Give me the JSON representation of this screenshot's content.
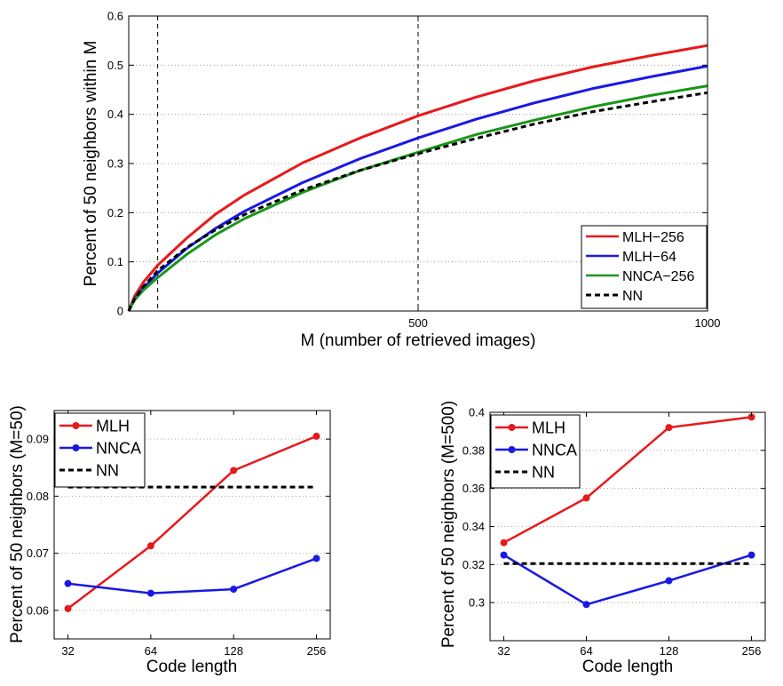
{
  "colors": {
    "red": "#e8191b",
    "blue": "#1919e6",
    "green": "#199619",
    "black": "#000000",
    "grid": "#8c8c8c"
  },
  "chart_data": [
    {
      "type": "line",
      "xlabel": "M (number of retrieved images)",
      "ylabel": "Percent of 50 neighbors within M",
      "xlim": [
        0,
        1000
      ],
      "ylim": [
        0,
        0.6
      ],
      "xticks": [
        500,
        1000
      ],
      "yticks": [
        0,
        0.1,
        0.2,
        0.3,
        0.4,
        0.5,
        0.6
      ],
      "ygrid": true,
      "vlines": [
        50,
        500
      ],
      "legend_position": "bottom-right",
      "series": [
        {
          "name": "MLH−256",
          "color": "#e8191b",
          "style": "solid",
          "x": [
            0,
            10,
            25,
            50,
            100,
            150,
            200,
            300,
            400,
            500,
            600,
            700,
            800,
            900,
            1000
          ],
          "y": [
            0,
            0.03,
            0.058,
            0.093,
            0.148,
            0.197,
            0.236,
            0.301,
            0.352,
            0.397,
            0.435,
            0.468,
            0.496,
            0.519,
            0.54
          ]
        },
        {
          "name": "MLH−64",
          "color": "#1919e6",
          "style": "solid",
          "x": [
            0,
            10,
            25,
            50,
            100,
            150,
            200,
            300,
            400,
            500,
            600,
            700,
            800,
            900,
            1000
          ],
          "y": [
            0,
            0.025,
            0.047,
            0.077,
            0.127,
            0.168,
            0.203,
            0.261,
            0.31,
            0.352,
            0.39,
            0.423,
            0.452,
            0.476,
            0.498
          ]
        },
        {
          "name": "NNCA−256",
          "color": "#199619",
          "style": "solid",
          "x": [
            0,
            10,
            25,
            50,
            100,
            150,
            200,
            300,
            400,
            500,
            600,
            700,
            800,
            900,
            1000
          ],
          "y": [
            0,
            0.022,
            0.042,
            0.068,
            0.115,
            0.155,
            0.188,
            0.241,
            0.286,
            0.323,
            0.359,
            0.388,
            0.415,
            0.438,
            0.458
          ]
        },
        {
          "name": "NN",
          "color": "#000000",
          "style": "dashed",
          "x": [
            0,
            10,
            25,
            50,
            100,
            150,
            200,
            300,
            400,
            500,
            600,
            700,
            800,
            900,
            1000
          ],
          "y": [
            0,
            0.024,
            0.049,
            0.082,
            0.129,
            0.165,
            0.196,
            0.246,
            0.286,
            0.32,
            0.351,
            0.38,
            0.405,
            0.425,
            0.444
          ]
        }
      ]
    },
    {
      "type": "line",
      "xlabel": "Code length",
      "ylabel": "Percent of 50 neighbors (M=50)",
      "categories": [
        "32",
        "64",
        "128",
        "256"
      ],
      "ylim": [
        0.055,
        0.095
      ],
      "yticks": [
        0.06,
        0.07,
        0.08,
        0.09
      ],
      "ygrid": true,
      "legend_position": "top-left",
      "series": [
        {
          "name": "MLH",
          "color": "#e8191b",
          "style": "solid-marker",
          "values": [
            0.0603,
            0.0713,
            0.0845,
            0.0905
          ]
        },
        {
          "name": "NNCA",
          "color": "#1919e6",
          "style": "solid-marker",
          "values": [
            0.0647,
            0.063,
            0.0637,
            0.0691
          ]
        },
        {
          "name": "NN",
          "color": "#000000",
          "style": "dashed",
          "values": [
            0.0816,
            0.0816,
            0.0816,
            0.0816
          ]
        }
      ]
    },
    {
      "type": "line",
      "xlabel": "Code length",
      "ylabel": "Percent of 50 neighbors (M=500)",
      "categories": [
        "32",
        "64",
        "128",
        "256"
      ],
      "ylim": [
        0.28,
        0.4
      ],
      "yticks": [
        0.3,
        0.32,
        0.34,
        0.36,
        0.38,
        0.4
      ],
      "ygrid": true,
      "legend_position": "top-left",
      "series": [
        {
          "name": "MLH",
          "color": "#e8191b",
          "style": "solid-marker",
          "values": [
            0.3315,
            0.355,
            0.392,
            0.3975
          ]
        },
        {
          "name": "NNCA",
          "color": "#1919e6",
          "style": "solid-marker",
          "values": [
            0.325,
            0.299,
            0.3115,
            0.325
          ]
        },
        {
          "name": "NN",
          "color": "#000000",
          "style": "dashed",
          "values": [
            0.3205,
            0.3205,
            0.3205,
            0.3205
          ]
        }
      ]
    }
  ]
}
